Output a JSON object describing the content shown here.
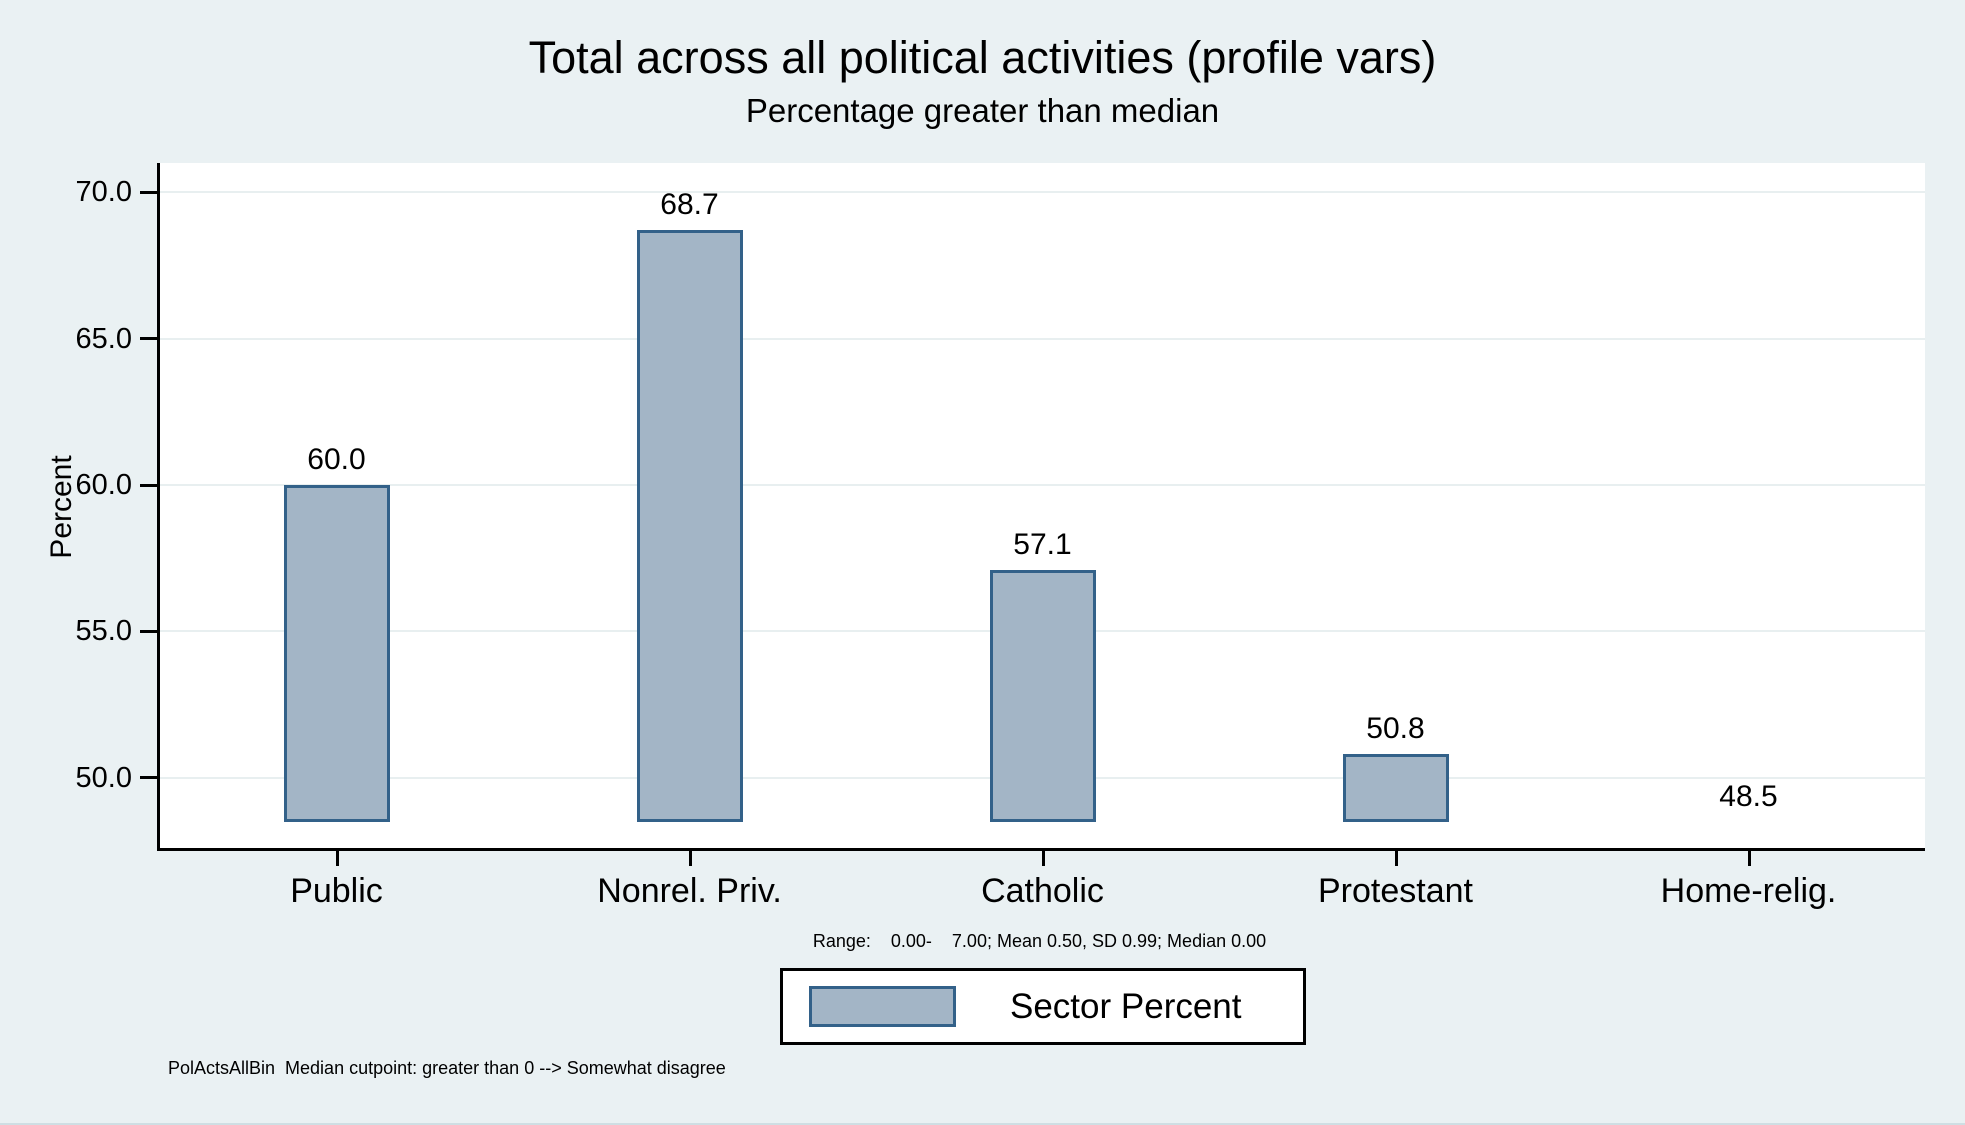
{
  "chart_data": {
    "type": "bar",
    "title": "Total across all political activities (profile vars)",
    "subtitle": "Percentage greater than median",
    "ylabel": "Percent",
    "categories": [
      "Public",
      "Nonrel. Priv.",
      "Catholic",
      "Protestant",
      "Home-relig."
    ],
    "values": [
      60.0,
      68.7,
      57.1,
      50.8,
      48.5
    ],
    "value_labels": [
      "60.0",
      "68.7",
      "57.1",
      "50.8",
      "48.5"
    ],
    "yticks": [
      70.0,
      65.0,
      60.0,
      55.0,
      50.0
    ],
    "ytick_labels": [
      "70.0",
      "65.0",
      "60.0",
      "55.0",
      "50.0"
    ],
    "ylim": [
      47.6,
      71.0
    ],
    "bar_baseline": 48.5,
    "grid": true,
    "legend_position": "bottom-center",
    "legend_label": "Sector Percent",
    "note": "Range:    0.00-    7.00; Mean 0.50, SD 0.99; Median 0.00",
    "footnote": "PolActsAllBin  Median cutpoint: greater than 0 --> Somewhat disagree",
    "colors": {
      "background": "#EAF1F3",
      "plot_background": "#FFFFFF",
      "bar_fill": "#A3B5C6",
      "bar_border": "#336189",
      "gridline": "#E8EFF0",
      "axis": "#000000"
    }
  }
}
